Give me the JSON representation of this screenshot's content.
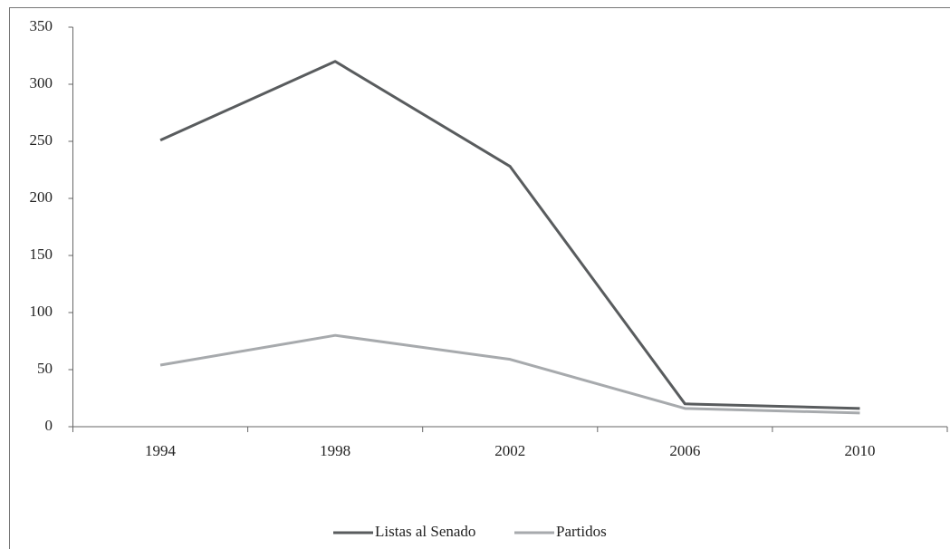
{
  "chart_data": {
    "type": "line",
    "categories": [
      "1994",
      "1998",
      "2002",
      "2006",
      "2010"
    ],
    "series": [
      {
        "name": "Listas al Senado",
        "color": "#595c5e",
        "values": [
          251,
          320,
          228,
          20,
          16
        ]
      },
      {
        "name": "Partidos",
        "color": "#a7aaad",
        "values": [
          54,
          80,
          59,
          16,
          12
        ]
      }
    ],
    "ylim": [
      0,
      350
    ],
    "yticks": [
      0,
      50,
      100,
      150,
      200,
      250,
      300,
      350
    ],
    "legend": "bottom"
  }
}
